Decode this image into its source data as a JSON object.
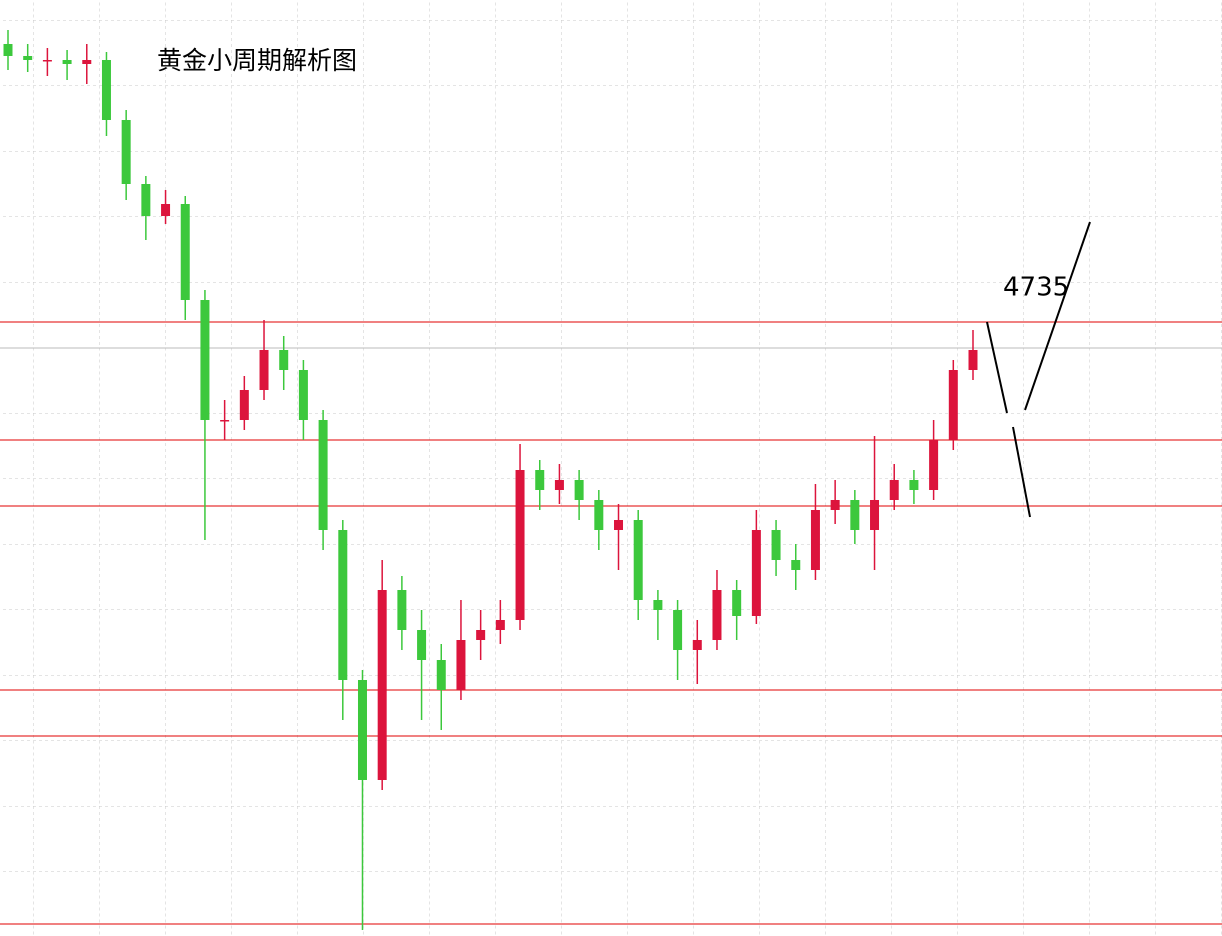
{
  "chart_data": {
    "type": "candlestick",
    "title": "黄金小周期解析图",
    "annotation": "4735",
    "ylim": [
      4332,
      4800
    ],
    "up_color": "#dc143c",
    "down_color": "#3cc83c",
    "level_color": "#e00000",
    "price_line_color": "#bbbbbb",
    "levels": [
      4639,
      4580,
      4547,
      4455,
      4432,
      4338
    ],
    "price_line": 4626,
    "open": [
      4778,
      4772,
      4770,
      4770,
      4768,
      4770,
      4740,
      4708,
      4692,
      4698,
      4650,
      4590,
      4590,
      4605,
      4625,
      4615,
      4590,
      4535,
      4460,
      4410,
      4505,
      4485,
      4470,
      4455,
      4480,
      4485,
      4490,
      4565,
      4555,
      4560,
      4550,
      4535,
      4540,
      4500,
      4495,
      4475,
      4480,
      4505,
      4492,
      4535,
      4520,
      4515,
      4545,
      4550,
      4535,
      4550,
      4560,
      4555,
      4580,
      4615
    ],
    "high": [
      4785,
      4778,
      4776,
      4775,
      4778,
      4774,
      4745,
      4712,
      4705,
      4702,
      4655,
      4600,
      4612,
      4640,
      4632,
      4620,
      4595,
      4540,
      4465,
      4520,
      4512,
      4495,
      4478,
      4500,
      4495,
      4500,
      4578,
      4570,
      4568,
      4565,
      4555,
      4548,
      4545,
      4505,
      4500,
      4490,
      4515,
      4510,
      4545,
      4540,
      4528,
      4558,
      4560,
      4555,
      4582,
      4568,
      4565,
      4590,
      4620,
      4635
    ],
    "low": [
      4765,
      4764,
      4762,
      4760,
      4758,
      4732,
      4700,
      4680,
      4688,
      4640,
      4530,
      4580,
      4585,
      4600,
      4605,
      4580,
      4525,
      4440,
      4335,
      4405,
      4475,
      4440,
      4435,
      4450,
      4470,
      4478,
      4485,
      4545,
      4548,
      4540,
      4525,
      4515,
      4490,
      4480,
      4460,
      4458,
      4475,
      4480,
      4488,
      4512,
      4505,
      4510,
      4538,
      4528,
      4515,
      4545,
      4548,
      4550,
      4575,
      4610
    ],
    "close": [
      4772,
      4770,
      4770,
      4768,
      4770,
      4740,
      4708,
      4692,
      4698,
      4650,
      4590,
      4590,
      4605,
      4625,
      4615,
      4590,
      4535,
      4460,
      4410,
      4505,
      4485,
      4470,
      4455,
      4480,
      4485,
      4490,
      4565,
      4555,
      4560,
      4550,
      4535,
      4540,
      4500,
      4495,
      4475,
      4480,
      4505,
      4492,
      4535,
      4520,
      4515,
      4545,
      4550,
      4535,
      4550,
      4560,
      4555,
      4580,
      4615,
      4625
    ]
  }
}
